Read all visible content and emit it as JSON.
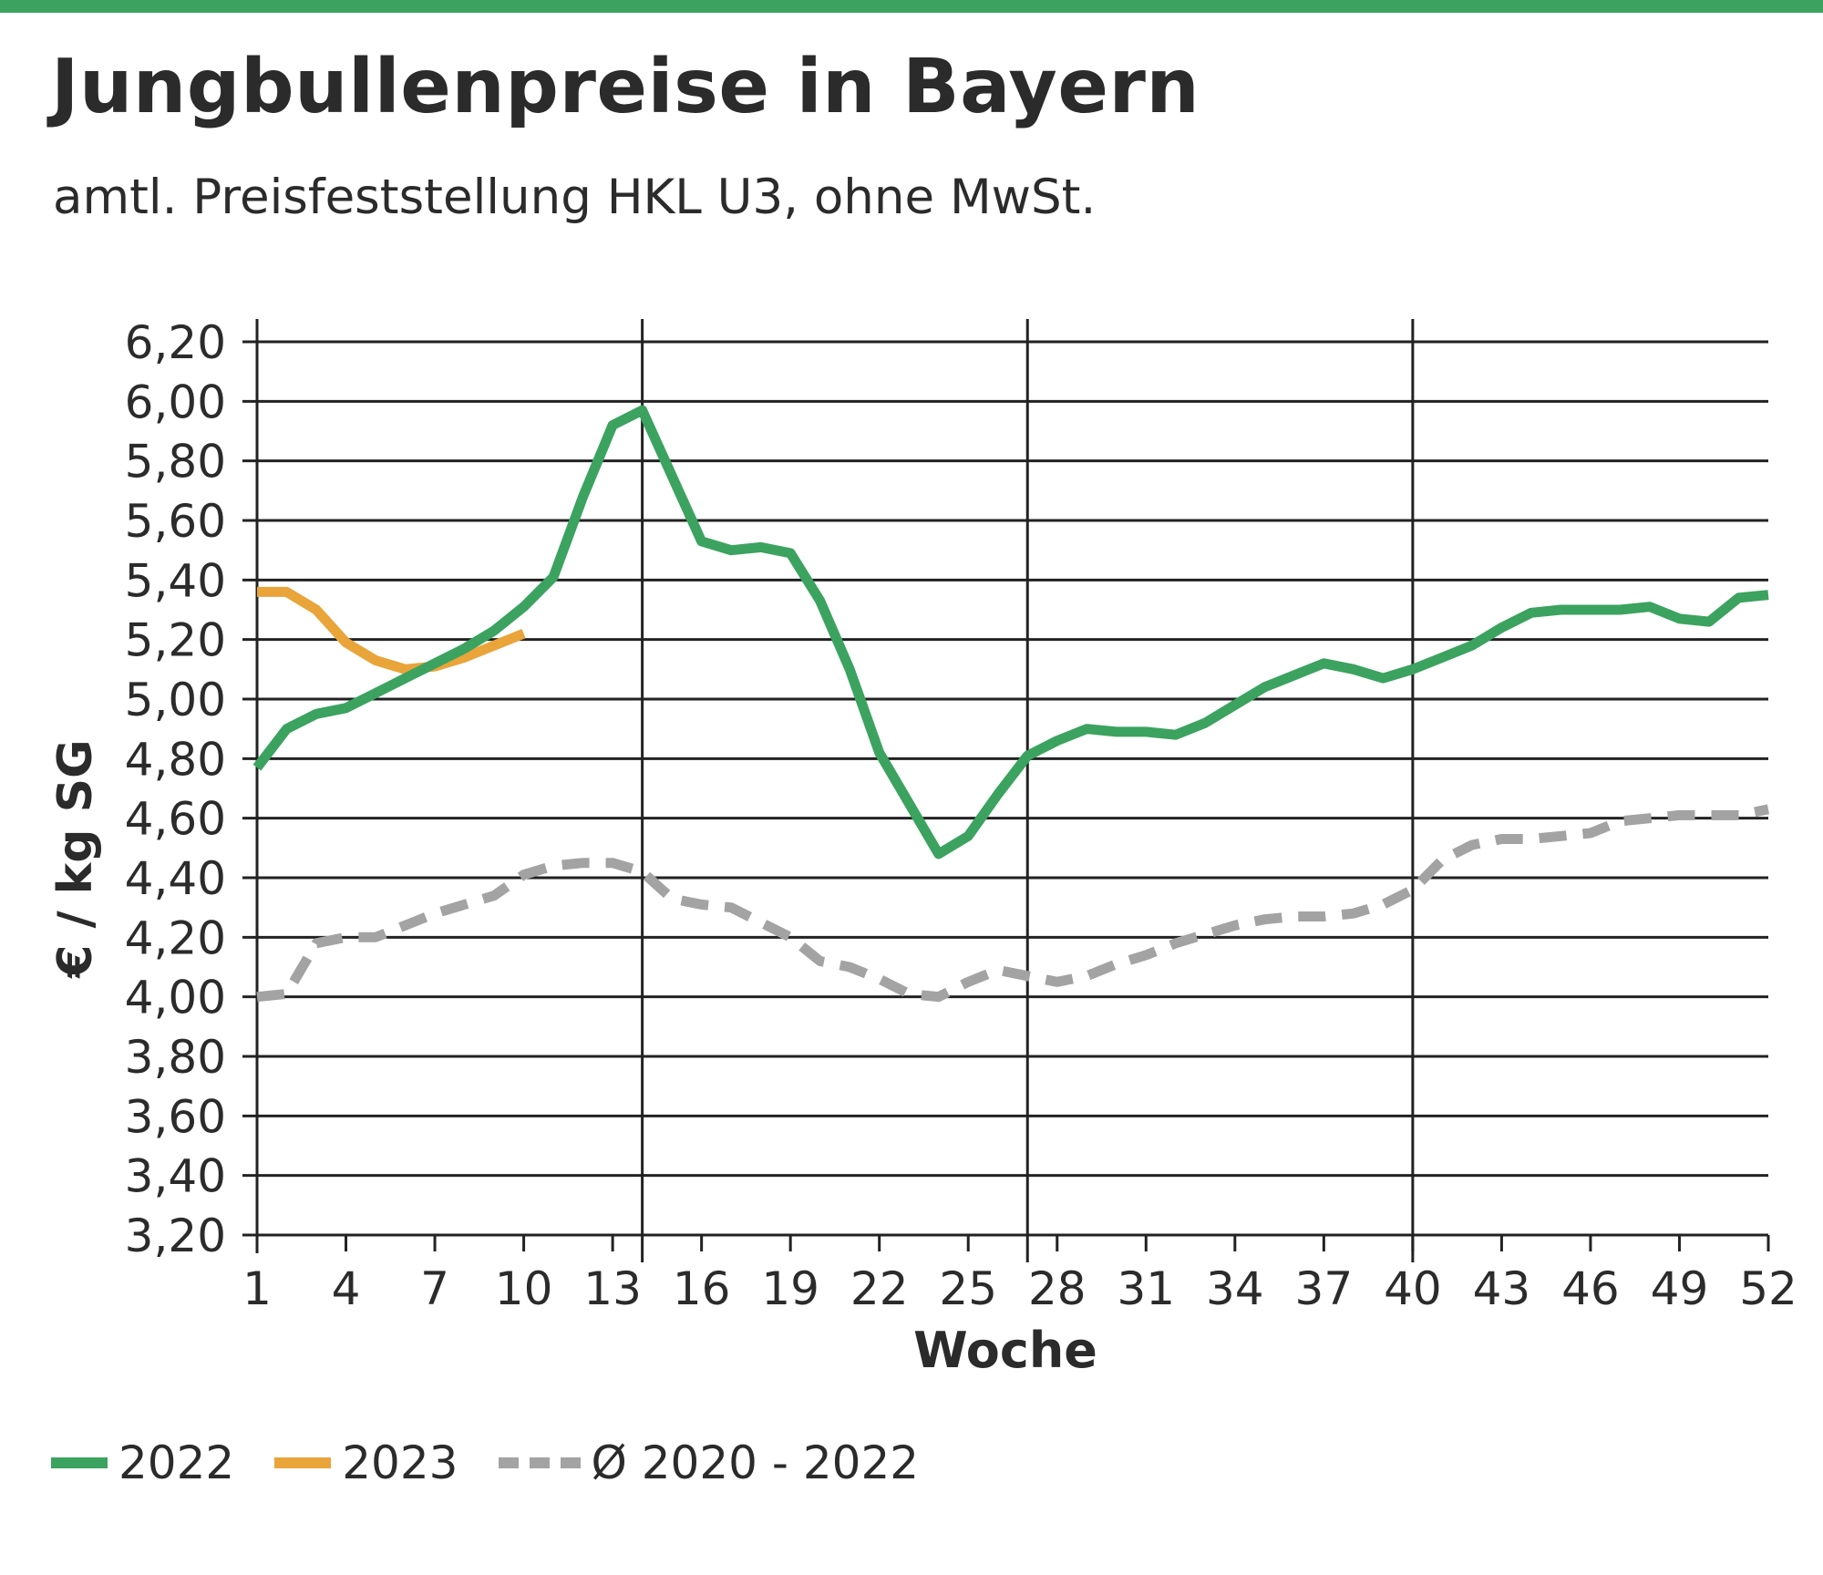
{
  "header": {
    "title": "Jungbullenpreise in Bayern",
    "subtitle": "amtl. Preisfeststellung HKL U3, ohne MwSt."
  },
  "colors": {
    "accent_bar": "#3ba35f",
    "series_2022": "#3ba35f",
    "series_2023": "#e9a43a",
    "series_avg": "#a3a3a3"
  },
  "chart_data": {
    "type": "line",
    "title": "Jungbullenpreise in Bayern",
    "subtitle": "amtl. Preisfeststellung HKL U3, ohne MwSt.",
    "xlabel": "Woche",
    "ylabel": "€ / kg SG",
    "xlim": [
      1,
      52
    ],
    "ylim": [
      3.2,
      6.2
    ],
    "grid": "horizontal lines every 0,20; vertical lines at weeks 14, 27, 40",
    "legend_position": "bottom-left",
    "x_ticks": [
      "1",
      "4",
      "7",
      "10",
      "13",
      "16",
      "19",
      "22",
      "25",
      "28",
      "31",
      "34",
      "37",
      "40",
      "43",
      "46",
      "49",
      "52"
    ],
    "y_ticks": [
      "6,20",
      "6,00",
      "5,80",
      "5,60",
      "5,40",
      "5,20",
      "5,00",
      "4,80",
      "4,60",
      "4,40",
      "4,20",
      "4,00",
      "3,80",
      "3,60",
      "3,40",
      "3,20"
    ],
    "series": [
      {
        "name": "2022",
        "color": "#3ba35f",
        "style": "solid",
        "points": [
          [
            1,
            4.77
          ],
          [
            2,
            4.9
          ],
          [
            3,
            4.95
          ],
          [
            4,
            4.97
          ],
          [
            5,
            5.02
          ],
          [
            6,
            5.07
          ],
          [
            7,
            5.12
          ],
          [
            8,
            5.17
          ],
          [
            9,
            5.23
          ],
          [
            10,
            5.31
          ],
          [
            11,
            5.41
          ],
          [
            12,
            5.68
          ],
          [
            13,
            5.92
          ],
          [
            14,
            5.97
          ],
          [
            15,
            5.75
          ],
          [
            16,
            5.53
          ],
          [
            17,
            5.5
          ],
          [
            18,
            5.51
          ],
          [
            19,
            5.49
          ],
          [
            20,
            5.33
          ],
          [
            21,
            5.1
          ],
          [
            22,
            4.82
          ],
          [
            23,
            4.65
          ],
          [
            24,
            4.48
          ],
          [
            25,
            4.54
          ],
          [
            26,
            4.68
          ],
          [
            27,
            4.81
          ],
          [
            28,
            4.86
          ],
          [
            29,
            4.9
          ],
          [
            30,
            4.89
          ],
          [
            31,
            4.89
          ],
          [
            32,
            4.88
          ],
          [
            33,
            4.92
          ],
          [
            34,
            4.98
          ],
          [
            35,
            5.04
          ],
          [
            36,
            5.08
          ],
          [
            37,
            5.12
          ],
          [
            38,
            5.1
          ],
          [
            39,
            5.07
          ],
          [
            40,
            5.1
          ],
          [
            41,
            5.14
          ],
          [
            42,
            5.18
          ],
          [
            43,
            5.24
          ],
          [
            44,
            5.29
          ],
          [
            45,
            5.3
          ],
          [
            46,
            5.3
          ],
          [
            47,
            5.3
          ],
          [
            48,
            5.31
          ],
          [
            49,
            5.27
          ],
          [
            50,
            5.26
          ],
          [
            51,
            5.34
          ],
          [
            52,
            5.35
          ]
        ]
      },
      {
        "name": "2023",
        "color": "#e9a43a",
        "style": "solid",
        "points": [
          [
            1,
            5.36
          ],
          [
            2,
            5.36
          ],
          [
            3,
            5.3
          ],
          [
            4,
            5.19
          ],
          [
            5,
            5.13
          ],
          [
            6,
            5.1
          ],
          [
            7,
            5.11
          ],
          [
            8,
            5.14
          ],
          [
            9,
            5.18
          ],
          [
            10,
            5.22
          ]
        ]
      },
      {
        "name": "Ø 2020 - 2022",
        "color": "#a3a3a3",
        "style": "dashed",
        "points": [
          [
            1,
            4.0
          ],
          [
            2,
            4.01
          ],
          [
            3,
            4.18
          ],
          [
            4,
            4.2
          ],
          [
            5,
            4.2
          ],
          [
            6,
            4.24
          ],
          [
            7,
            4.28
          ],
          [
            8,
            4.31
          ],
          [
            9,
            4.34
          ],
          [
            10,
            4.41
          ],
          [
            11,
            4.44
          ],
          [
            12,
            4.45
          ],
          [
            13,
            4.45
          ],
          [
            14,
            4.42
          ],
          [
            15,
            4.33
          ],
          [
            16,
            4.31
          ],
          [
            17,
            4.3
          ],
          [
            18,
            4.25
          ],
          [
            19,
            4.2
          ],
          [
            20,
            4.12
          ],
          [
            21,
            4.1
          ],
          [
            22,
            4.06
          ],
          [
            23,
            4.01
          ],
          [
            24,
            4.0
          ],
          [
            25,
            4.05
          ],
          [
            26,
            4.09
          ],
          [
            27,
            4.07
          ],
          [
            28,
            4.05
          ],
          [
            29,
            4.07
          ],
          [
            30,
            4.11
          ],
          [
            31,
            4.14
          ],
          [
            32,
            4.18
          ],
          [
            33,
            4.21
          ],
          [
            34,
            4.24
          ],
          [
            35,
            4.26
          ],
          [
            36,
            4.27
          ],
          [
            37,
            4.27
          ],
          [
            38,
            4.28
          ],
          [
            39,
            4.31
          ],
          [
            40,
            4.36
          ],
          [
            41,
            4.46
          ],
          [
            42,
            4.51
          ],
          [
            43,
            4.53
          ],
          [
            44,
            4.53
          ],
          [
            45,
            4.54
          ],
          [
            46,
            4.55
          ],
          [
            47,
            4.59
          ],
          [
            48,
            4.6
          ],
          [
            49,
            4.61
          ],
          [
            50,
            4.61
          ],
          [
            51,
            4.61
          ],
          [
            52,
            4.63
          ]
        ]
      }
    ]
  },
  "legend": [
    {
      "label": "2022",
      "color": "#3ba35f",
      "style": "solid"
    },
    {
      "label": "2023",
      "color": "#e9a43a",
      "style": "solid"
    },
    {
      "label": "Ø 2020 - 2022",
      "color": "#a3a3a3",
      "style": "dashed"
    }
  ]
}
